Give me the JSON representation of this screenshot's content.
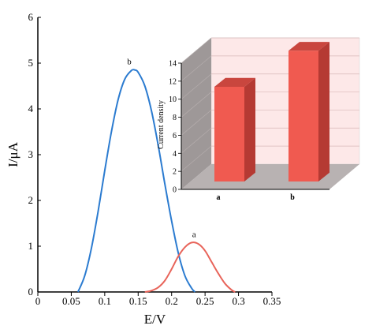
{
  "chart_data": [
    {
      "type": "line",
      "xlabel": "E/V",
      "ylabel": "I/μA",
      "xlim": [
        0,
        0.35
      ],
      "ylim": [
        0,
        6
      ],
      "x_ticks": [
        "0",
        "0.05",
        "0.1",
        "0.15",
        "0.2",
        "0.25",
        "0.3",
        "0.35"
      ],
      "y_ticks": [
        "0",
        "1",
        "2",
        "3",
        "4",
        "5",
        "6"
      ],
      "series": [
        {
          "name": "b",
          "color": "#2b7bd0",
          "x": [
            0.06,
            0.07,
            0.08,
            0.09,
            0.1,
            0.11,
            0.12,
            0.13,
            0.14,
            0.145,
            0.15,
            0.16,
            0.17,
            0.18,
            0.19,
            0.2,
            0.21,
            0.22,
            0.23,
            0.235
          ],
          "y": [
            0.0,
            0.35,
            0.95,
            1.75,
            2.65,
            3.5,
            4.2,
            4.65,
            4.84,
            4.85,
            4.8,
            4.5,
            3.95,
            3.2,
            2.35,
            1.55,
            0.85,
            0.35,
            0.08,
            0.0
          ]
        },
        {
          "name": "a",
          "color": "#e8645a",
          "x": [
            0.16,
            0.17,
            0.18,
            0.19,
            0.2,
            0.21,
            0.22,
            0.23,
            0.24,
            0.25,
            0.26,
            0.27,
            0.28,
            0.29,
            0.295
          ],
          "y": [
            0.0,
            0.03,
            0.1,
            0.25,
            0.5,
            0.78,
            0.98,
            1.08,
            1.05,
            0.9,
            0.65,
            0.4,
            0.18,
            0.04,
            0.0
          ]
        }
      ]
    },
    {
      "type": "bar",
      "ylabel": "Current density",
      "ylim": [
        0,
        14
      ],
      "y_ticks": [
        "0",
        "2",
        "4",
        "6",
        "8",
        "10",
        "12",
        "14"
      ],
      "categories": [
        "a",
        "b"
      ],
      "values": [
        10.5,
        14.5
      ],
      "bar_color": "#f05a50",
      "wall_color": "#fde8e8",
      "floor_color": "#b8b2b2"
    }
  ]
}
